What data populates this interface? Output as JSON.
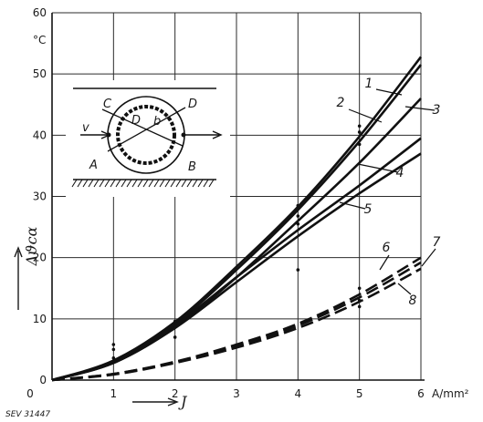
{
  "chart_data": {
    "type": "line",
    "x_unit": "A/mm²",
    "x_label": "J",
    "y_unit": "°C",
    "y_label": "Δϑcα",
    "xlim": [
      0,
      6
    ],
    "ylim": [
      0,
      60
    ],
    "x_ticks": [
      "0",
      "1",
      "2",
      "3",
      "4",
      "5",
      "6"
    ],
    "y_ticks": [
      "0",
      "10",
      "20",
      "30",
      "40",
      "50",
      "60"
    ],
    "grid": true,
    "figure_ref": "SEV 31447",
    "series": [
      {
        "name": "1",
        "style": "solid",
        "x": [
          0,
          1,
          2,
          3,
          4,
          5,
          6
        ],
        "y": [
          0,
          3.2,
          9.5,
          18.5,
          28.3,
          39.8,
          52.8
        ]
      },
      {
        "name": "2",
        "style": "solid",
        "x": [
          0,
          1,
          2,
          3,
          4,
          5,
          6
        ],
        "y": [
          0,
          3.0,
          9.2,
          18.0,
          27.8,
          39.0,
          51.5
        ]
      },
      {
        "name": "3",
        "style": "solid",
        "x": [
          0,
          1,
          2,
          3,
          4,
          5,
          6
        ],
        "y": [
          0,
          2.8,
          8.6,
          16.8,
          26.0,
          35.5,
          46.0
        ]
      },
      {
        "name": "4",
        "style": "solid",
        "x": [
          0,
          1,
          2,
          3,
          4,
          5,
          6
        ],
        "y": [
          0,
          3.0,
          9.0,
          16.8,
          24.5,
          31.8,
          39.5
        ]
      },
      {
        "name": "5",
        "style": "solid",
        "x": [
          0,
          1,
          2,
          3,
          4,
          5,
          6
        ],
        "y": [
          0,
          2.8,
          8.5,
          16.0,
          23.5,
          30.5,
          37.0
        ]
      },
      {
        "name": "6",
        "style": "dashed",
        "x": [
          0,
          1,
          2,
          3,
          4,
          5,
          6
        ],
        "y": [
          0,
          1.0,
          3.0,
          5.8,
          9.2,
          14.0,
          20.0
        ]
      },
      {
        "name": "7",
        "style": "dashed",
        "x": [
          0,
          1,
          2,
          3,
          4,
          5,
          6
        ],
        "y": [
          0,
          1.0,
          2.9,
          5.6,
          8.9,
          13.5,
          19.2
        ]
      },
      {
        "name": "8",
        "style": "dashed",
        "x": [
          0,
          1,
          2,
          3,
          4,
          5,
          6
        ],
        "y": [
          0,
          0.9,
          2.8,
          5.3,
          8.5,
          12.8,
          18.2
        ]
      }
    ],
    "measured_points": [
      {
        "x": 1,
        "y": 5.0
      },
      {
        "x": 1,
        "y": 5.8
      },
      {
        "x": 1,
        "y": 3.6
      },
      {
        "x": 2,
        "y": 7.0
      },
      {
        "x": 2,
        "y": 8.8
      },
      {
        "x": 2,
        "y": 9.6
      },
      {
        "x": 4,
        "y": 18.0
      },
      {
        "x": 4,
        "y": 25.5
      },
      {
        "x": 4,
        "y": 26.8
      },
      {
        "x": 4,
        "y": 28.5
      },
      {
        "x": 5,
        "y": 41.5
      },
      {
        "x": 5,
        "y": 40.5
      },
      {
        "x": 5,
        "y": 38.5
      },
      {
        "x": 5,
        "y": 15.0
      },
      {
        "x": 5,
        "y": 13.0
      },
      {
        "x": 5,
        "y": 12.0
      }
    ],
    "inset": {
      "labels": [
        "C",
        "D",
        "A",
        "B",
        "D",
        "b",
        "v"
      ]
    }
  }
}
